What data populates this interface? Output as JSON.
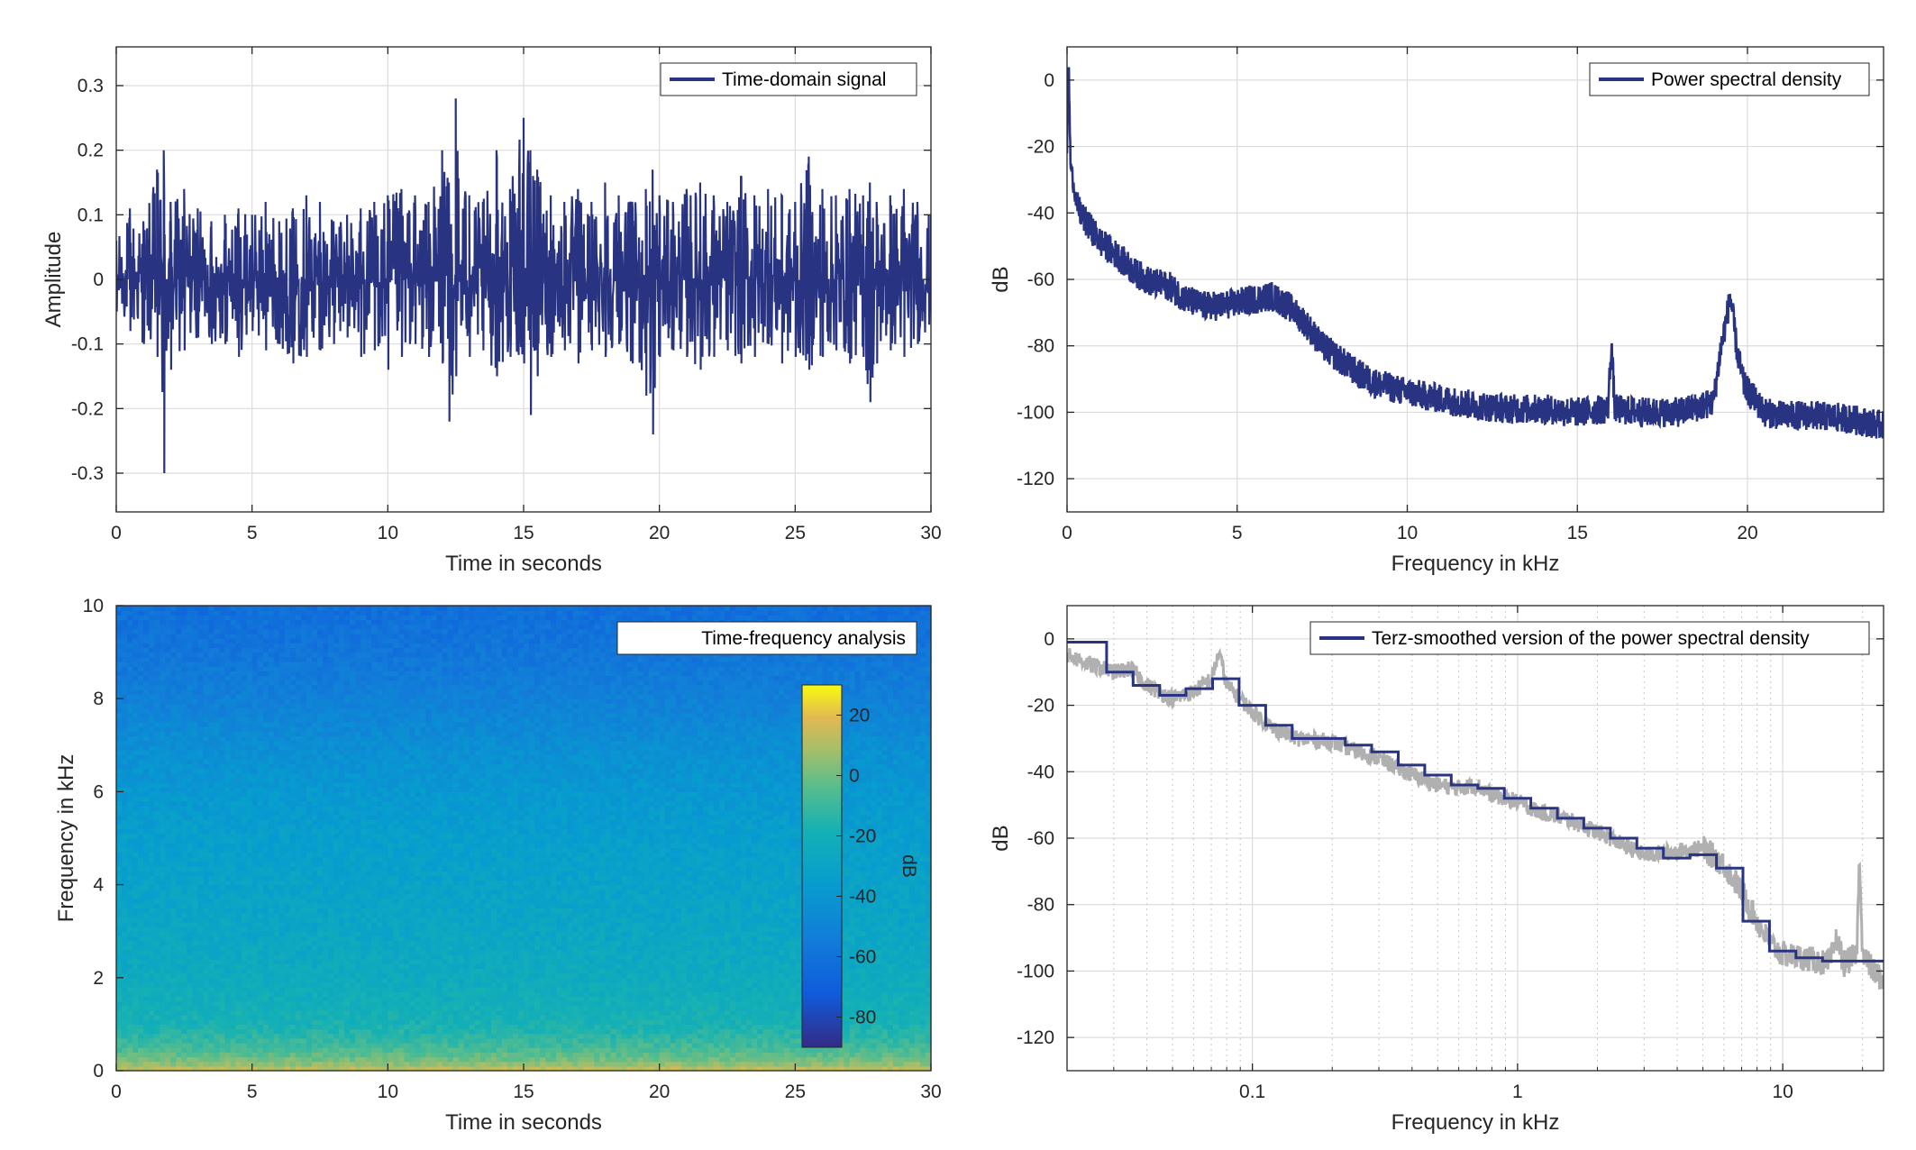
{
  "colors": {
    "series": "#283382",
    "raw_psd": "#b0b0b0",
    "grid": "#dcdcdc",
    "axis": "#262626"
  },
  "chart_data": [
    {
      "id": "time-domain",
      "type": "line",
      "xlabel": "Time in seconds",
      "ylabel": "Amplitude",
      "xlim": [
        0,
        30
      ],
      "ylim": [
        -0.36,
        0.36
      ],
      "xticks": [
        0,
        5,
        10,
        15,
        20,
        25,
        30
      ],
      "xtick_labels": [
        "0",
        "5",
        "10",
        "15",
        "20",
        "25",
        "30"
      ],
      "yticks": [
        -0.3,
        -0.2,
        -0.1,
        0,
        0.1,
        0.2,
        0.3
      ],
      "ytick_labels": [
        "-0.3",
        "-0.2",
        "-0.1",
        "0",
        "0.1",
        "0.2",
        "0.3"
      ],
      "grid": true,
      "legend": "top-right",
      "series": [
        {
          "name": "Time-domain signal",
          "color": "#283382",
          "x": [
            0,
            0.5,
            1,
            1.5,
            1.75,
            2,
            2.5,
            3,
            3.5,
            4,
            4.5,
            5,
            5.5,
            6,
            6.5,
            7,
            7.5,
            8,
            8.5,
            9,
            9.5,
            10,
            10.5,
            11,
            11.5,
            12,
            12.25,
            12.5,
            13,
            13.5,
            14,
            14.5,
            15,
            15.25,
            15.5,
            16,
            16.5,
            17,
            17.5,
            18,
            18.5,
            19,
            19.5,
            19.75,
            20,
            20.5,
            21,
            21.5,
            22,
            22.5,
            23,
            23.5,
            24,
            24.5,
            25,
            25.5,
            26,
            26.5,
            27,
            27.5,
            27.75,
            28,
            28.5,
            29,
            29.5,
            30
          ],
          "y_max": [
            0.06,
            0.11,
            0.09,
            0.17,
            0.2,
            0.12,
            0.14,
            0.11,
            0.09,
            0.1,
            0.11,
            0.1,
            0.12,
            0.09,
            0.11,
            0.13,
            0.12,
            0.09,
            0.1,
            0.11,
            0.12,
            0.13,
            0.14,
            0.13,
            0.12,
            0.2,
            0.15,
            0.28,
            0.13,
            0.12,
            0.2,
            0.14,
            0.25,
            0.2,
            0.17,
            0.13,
            0.12,
            0.14,
            0.12,
            0.15,
            0.13,
            0.12,
            0.14,
            0.17,
            0.13,
            0.12,
            0.14,
            0.15,
            0.13,
            0.12,
            0.16,
            0.13,
            0.14,
            0.13,
            0.12,
            0.19,
            0.14,
            0.13,
            0.14,
            0.13,
            0.15,
            0.12,
            0.13,
            0.14,
            0.12,
            0.1
          ],
          "y_min": [
            -0.05,
            -0.08,
            -0.1,
            -0.12,
            -0.3,
            -0.14,
            -0.11,
            -0.09,
            -0.1,
            -0.1,
            -0.12,
            -0.08,
            -0.11,
            -0.1,
            -0.13,
            -0.12,
            -0.11,
            -0.1,
            -0.09,
            -0.12,
            -0.11,
            -0.14,
            -0.12,
            -0.1,
            -0.12,
            -0.13,
            -0.22,
            -0.15,
            -0.12,
            -0.11,
            -0.15,
            -0.12,
            -0.13,
            -0.21,
            -0.15,
            -0.12,
            -0.11,
            -0.13,
            -0.11,
            -0.12,
            -0.1,
            -0.13,
            -0.18,
            -0.24,
            -0.12,
            -0.11,
            -0.12,
            -0.14,
            -0.12,
            -0.11,
            -0.13,
            -0.12,
            -0.1,
            -0.13,
            -0.12,
            -0.14,
            -0.12,
            -0.11,
            -0.13,
            -0.12,
            -0.19,
            -0.13,
            -0.11,
            -0.12,
            -0.1,
            -0.08
          ]
        }
      ]
    },
    {
      "id": "psd",
      "type": "line",
      "xlabel": "Frequency in kHz",
      "ylabel": "dB",
      "xlim": [
        0,
        24
      ],
      "ylim": [
        -130,
        10
      ],
      "xticks": [
        0,
        5,
        10,
        15,
        20
      ],
      "xtick_labels": [
        "0",
        "5",
        "10",
        "15",
        "20"
      ],
      "yticks": [
        -120,
        -100,
        -80,
        -60,
        -40,
        -20,
        0
      ],
      "ytick_labels": [
        "-120",
        "-100",
        "-80",
        "-60",
        "-40",
        "-20",
        "0"
      ],
      "grid": true,
      "legend": "top-right",
      "series": [
        {
          "name": "Power spectral density",
          "color": "#283382",
          "x": [
            0,
            0.05,
            0.1,
            0.2,
            0.3,
            0.5,
            0.8,
            1,
            1.5,
            2,
            2.5,
            3,
            3.5,
            4,
            4.5,
            5,
            5.5,
            6,
            6.5,
            7,
            7.5,
            8,
            8.5,
            9,
            10,
            11,
            12,
            13,
            14,
            15,
            15.9,
            16,
            16.1,
            17,
            18,
            19,
            19.2,
            19.5,
            19.7,
            19.9,
            20.5,
            21,
            22,
            23,
            24
          ],
          "y": [
            -20,
            5,
            -25,
            -32,
            -38,
            -42,
            -46,
            -49,
            -53,
            -58,
            -61,
            -62,
            -66,
            -68,
            -68,
            -67,
            -66,
            -65,
            -68,
            -73,
            -80,
            -84,
            -88,
            -91,
            -94,
            -96,
            -98,
            -99,
            -99,
            -100,
            -99,
            -79,
            -99,
            -100,
            -100,
            -97,
            -82,
            -65,
            -82,
            -92,
            -100,
            -101,
            -101,
            -102,
            -104
          ]
        }
      ]
    },
    {
      "id": "spectrogram",
      "type": "heatmap",
      "xlabel": "Time in seconds",
      "ylabel": "Frequency in kHz",
      "xlim": [
        0,
        30
      ],
      "ylim": [
        0,
        10
      ],
      "xticks": [
        0,
        5,
        10,
        15,
        20,
        25,
        30
      ],
      "xtick_labels": [
        "0",
        "5",
        "10",
        "15",
        "20",
        "25",
        "30"
      ],
      "yticks": [
        0,
        2,
        4,
        6,
        8,
        10
      ],
      "ytick_labels": [
        "0",
        "2",
        "4",
        "6",
        "8",
        "10"
      ],
      "legend": "top-right",
      "legend_label": "Time-frequency analysis",
      "colorbar": {
        "label": "dB",
        "range": [
          -90,
          30
        ],
        "ticks": [
          -80,
          -60,
          -40,
          -20,
          0,
          20
        ],
        "tick_labels": [
          "-80",
          "-60",
          "-40",
          "-20",
          "0",
          "20"
        ]
      },
      "frequency_profile_khz": [
        0,
        0.2,
        0.5,
        1,
        2,
        3,
        4,
        5,
        6,
        7,
        8,
        9,
        10
      ],
      "level_profile_db": [
        15,
        2,
        -8,
        -18,
        -24,
        -28,
        -31,
        -34,
        -38,
        -44,
        -52,
        -58,
        -62
      ]
    },
    {
      "id": "terz",
      "type": "line",
      "xlabel": "Frequency in kHz",
      "ylabel": "dB",
      "xscale": "log",
      "xlim": [
        0.02,
        24
      ],
      "ylim": [
        -130,
        10
      ],
      "xticks": [
        0.1,
        1,
        10
      ],
      "xtick_labels": [
        "0.1",
        "1",
        "10"
      ],
      "yticks": [
        -120,
        -100,
        -80,
        -60,
        -40,
        -20,
        0
      ],
      "ytick_labels": [
        "-120",
        "-100",
        "-80",
        "-60",
        "-40",
        "-20",
        "0"
      ],
      "grid": true,
      "legend": "top-right",
      "series": [
        {
          "name": "",
          "color": "#b0b0b0",
          "x": [
            0.02,
            0.025,
            0.03,
            0.035,
            0.04,
            0.05,
            0.06,
            0.07,
            0.075,
            0.08,
            0.09,
            0.1,
            0.12,
            0.15,
            0.2,
            0.25,
            0.3,
            0.4,
            0.5,
            0.6,
            0.7,
            0.8,
            1,
            1.2,
            1.5,
            2,
            2.5,
            3,
            4,
            5,
            6,
            7,
            8,
            9,
            10,
            12,
            15,
            16,
            17,
            19,
            19.5,
            20,
            22,
            24
          ],
          "y": [
            -5,
            -8,
            -10,
            -9,
            -14,
            -18,
            -16,
            -12,
            -4,
            -14,
            -18,
            -22,
            -27,
            -30,
            -31,
            -34,
            -36,
            -41,
            -44,
            -45,
            -44,
            -47,
            -49,
            -52,
            -54,
            -58,
            -62,
            -65,
            -64,
            -63,
            -68,
            -76,
            -85,
            -92,
            -95,
            -96,
            -98,
            -90,
            -98,
            -95,
            -65,
            -95,
            -100,
            -103
          ]
        },
        {
          "name": "Terz-smoothed version of the power spectral density",
          "color": "#283382",
          "step_edges": [
            0.02,
            0.0282,
            0.0355,
            0.0447,
            0.0562,
            0.0708,
            0.0891,
            0.1122,
            0.1413,
            0.1778,
            0.2239,
            0.2818,
            0.3548,
            0.4467,
            0.5623,
            0.7079,
            0.8913,
            1.122,
            1.413,
            1.778,
            2.239,
            2.818,
            3.548,
            4.467,
            5.623,
            7.079,
            8.913,
            11.22,
            14.13,
            17.78,
            24
          ],
          "step_values": [
            -1,
            -10,
            -14,
            -17,
            -15,
            -12,
            -20,
            -26,
            -30,
            -30,
            -32,
            -34,
            -38,
            -41,
            -44,
            -45,
            -48,
            -51,
            -54,
            -57,
            -60,
            -63,
            -66,
            -65,
            -69,
            -85,
            -94,
            -96,
            -97,
            -97
          ]
        }
      ]
    }
  ]
}
